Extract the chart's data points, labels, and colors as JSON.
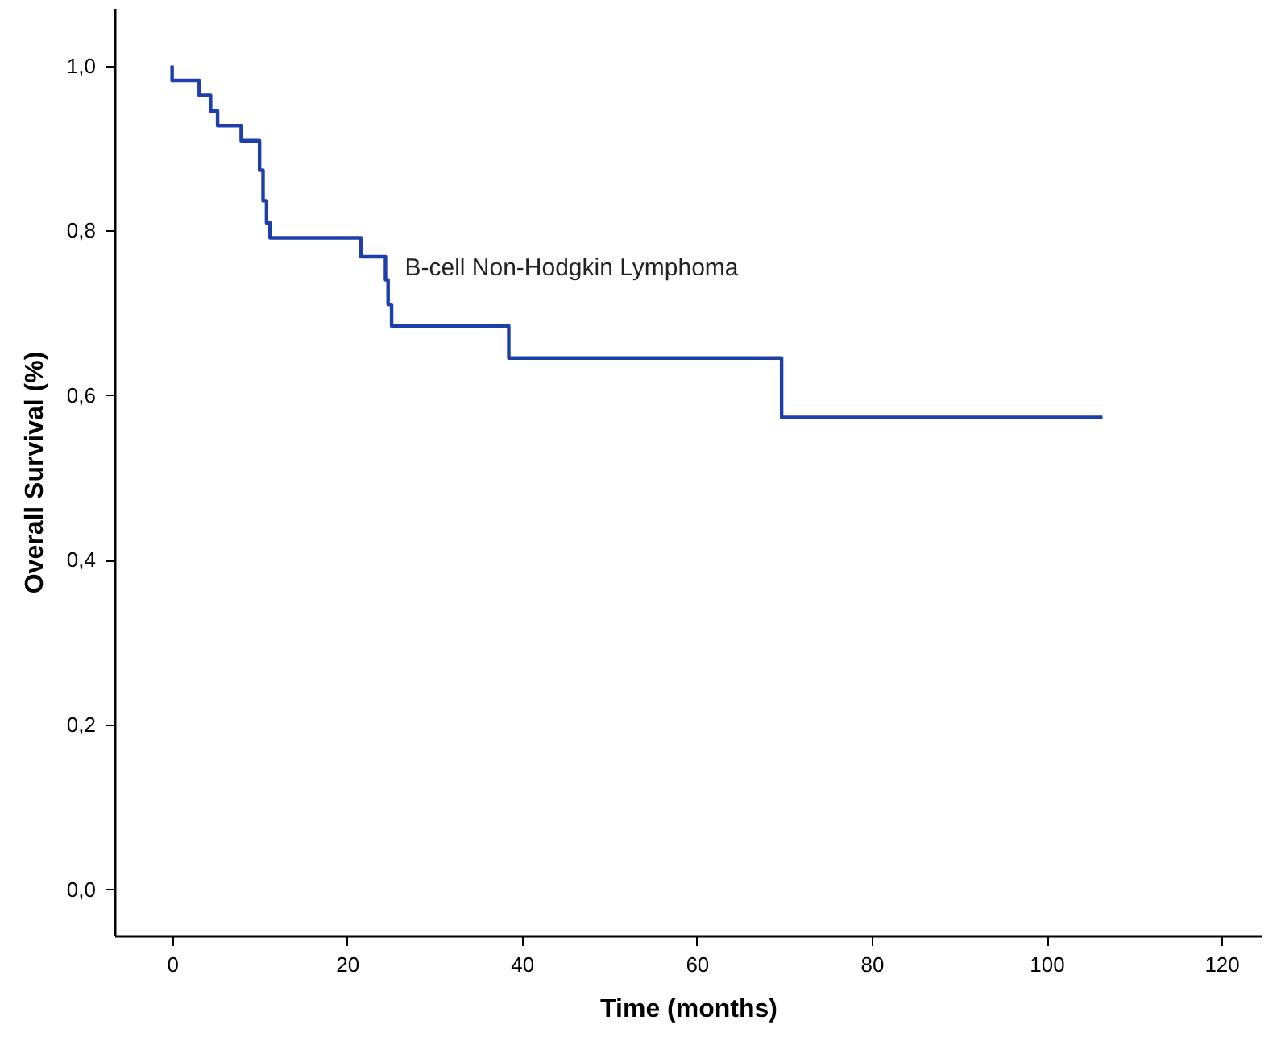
{
  "chart_data": {
    "type": "step",
    "xlabel": "Time (months)",
    "ylabel": "Overall Survival (%)",
    "xlim": [
      -6.6,
      124.6
    ],
    "ylim": [
      -0.056,
      1.07
    ],
    "xticks": [
      0,
      20,
      40,
      60,
      80,
      100,
      120
    ],
    "yticks": [
      {
        "value": 0,
        "label": "0,0"
      },
      {
        "value": 0.2,
        "label": "0,2"
      },
      {
        "value": 0.4,
        "label": "0,4"
      },
      {
        "value": 0.6,
        "label": "0,6"
      },
      {
        "value": 0.8,
        "label": "0,8"
      },
      {
        "value": 1,
        "label": "1,0"
      }
    ],
    "grid": false,
    "legend": false,
    "marker": "none",
    "line_style": "solid",
    "series": [
      {
        "name": "B-cell Non-Hodgkin Lymphoma",
        "color": "#1f3fa8",
        "x": [
          0,
          0,
          3.1,
          4.4,
          5.2,
          7.9,
          10.0,
          10.4,
          10.8,
          11.2,
          21.6,
          24.4,
          24.7,
          25.1,
          38.5,
          69.7,
          106.4
        ],
        "values": [
          1.0,
          0.982,
          0.964,
          0.945,
          0.927,
          0.909,
          0.873,
          0.836,
          0.809,
          0.791,
          0.768,
          0.74,
          0.71,
          0.684,
          0.645,
          0.573,
          0.573
        ]
      }
    ]
  }
}
